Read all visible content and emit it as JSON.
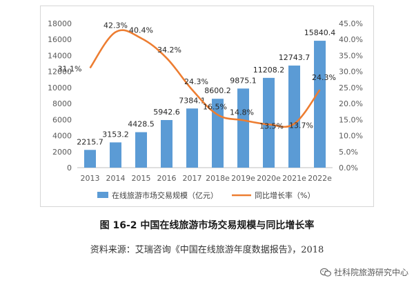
{
  "chart_data": {
    "type": "bar+line",
    "categories": [
      "2013",
      "2014",
      "2015",
      "2016",
      "2017",
      "2018e",
      "2019e",
      "2020e",
      "2021e",
      "2022e"
    ],
    "series": [
      {
        "name": "在线旅游市场交易规模（亿元）",
        "type": "bar",
        "axis": "left",
        "color": "#5b9bd5",
        "values": [
          2215.7,
          3153.2,
          4428.5,
          5942.6,
          7384.1,
          8600.2,
          9875.1,
          11208.2,
          12743.7,
          15840.4
        ],
        "labels": [
          "2215.7",
          "3153.2",
          "4428.5",
          "5942.6",
          "7384.1",
          "8600.2",
          "9875.1",
          "11208.2",
          "12743.7",
          "15840.4"
        ]
      },
      {
        "name": "同比增长率（%）",
        "type": "line",
        "axis": "right",
        "color": "#ed7d31",
        "values": [
          31.1,
          42.3,
          40.4,
          34.2,
          24.3,
          16.5,
          14.8,
          13.5,
          13.7,
          24.3
        ],
        "labels": [
          "31.1%",
          "42.3%",
          "40.4%",
          "34.2%",
          "24.3%",
          "16.5%",
          "14.8%",
          "13.5%",
          "13.7%",
          "24.3%"
        ]
      }
    ],
    "y_left": {
      "ylim": [
        0,
        18000
      ],
      "ticks": [
        "0",
        "2000",
        "4000",
        "6000",
        "8000",
        "10000",
        "12000",
        "14000",
        "16000",
        "18000"
      ]
    },
    "y_right": {
      "ylim": [
        0,
        45
      ],
      "ticks": [
        "0.0%",
        "5.0%",
        "10.0%",
        "15.0%",
        "20.0%",
        "25.0%",
        "30.0%",
        "35.0%",
        "40.0%",
        "45.0%"
      ]
    },
    "grid": false,
    "legend": "bottom"
  },
  "caption": "图 16-2  中国在线旅游市场交易规模与同比增长率",
  "source": "资料来源：艾瑞咨询《中国在线旅游年度数据报告》，2018",
  "watermark": "社科院旅游研究中心"
}
